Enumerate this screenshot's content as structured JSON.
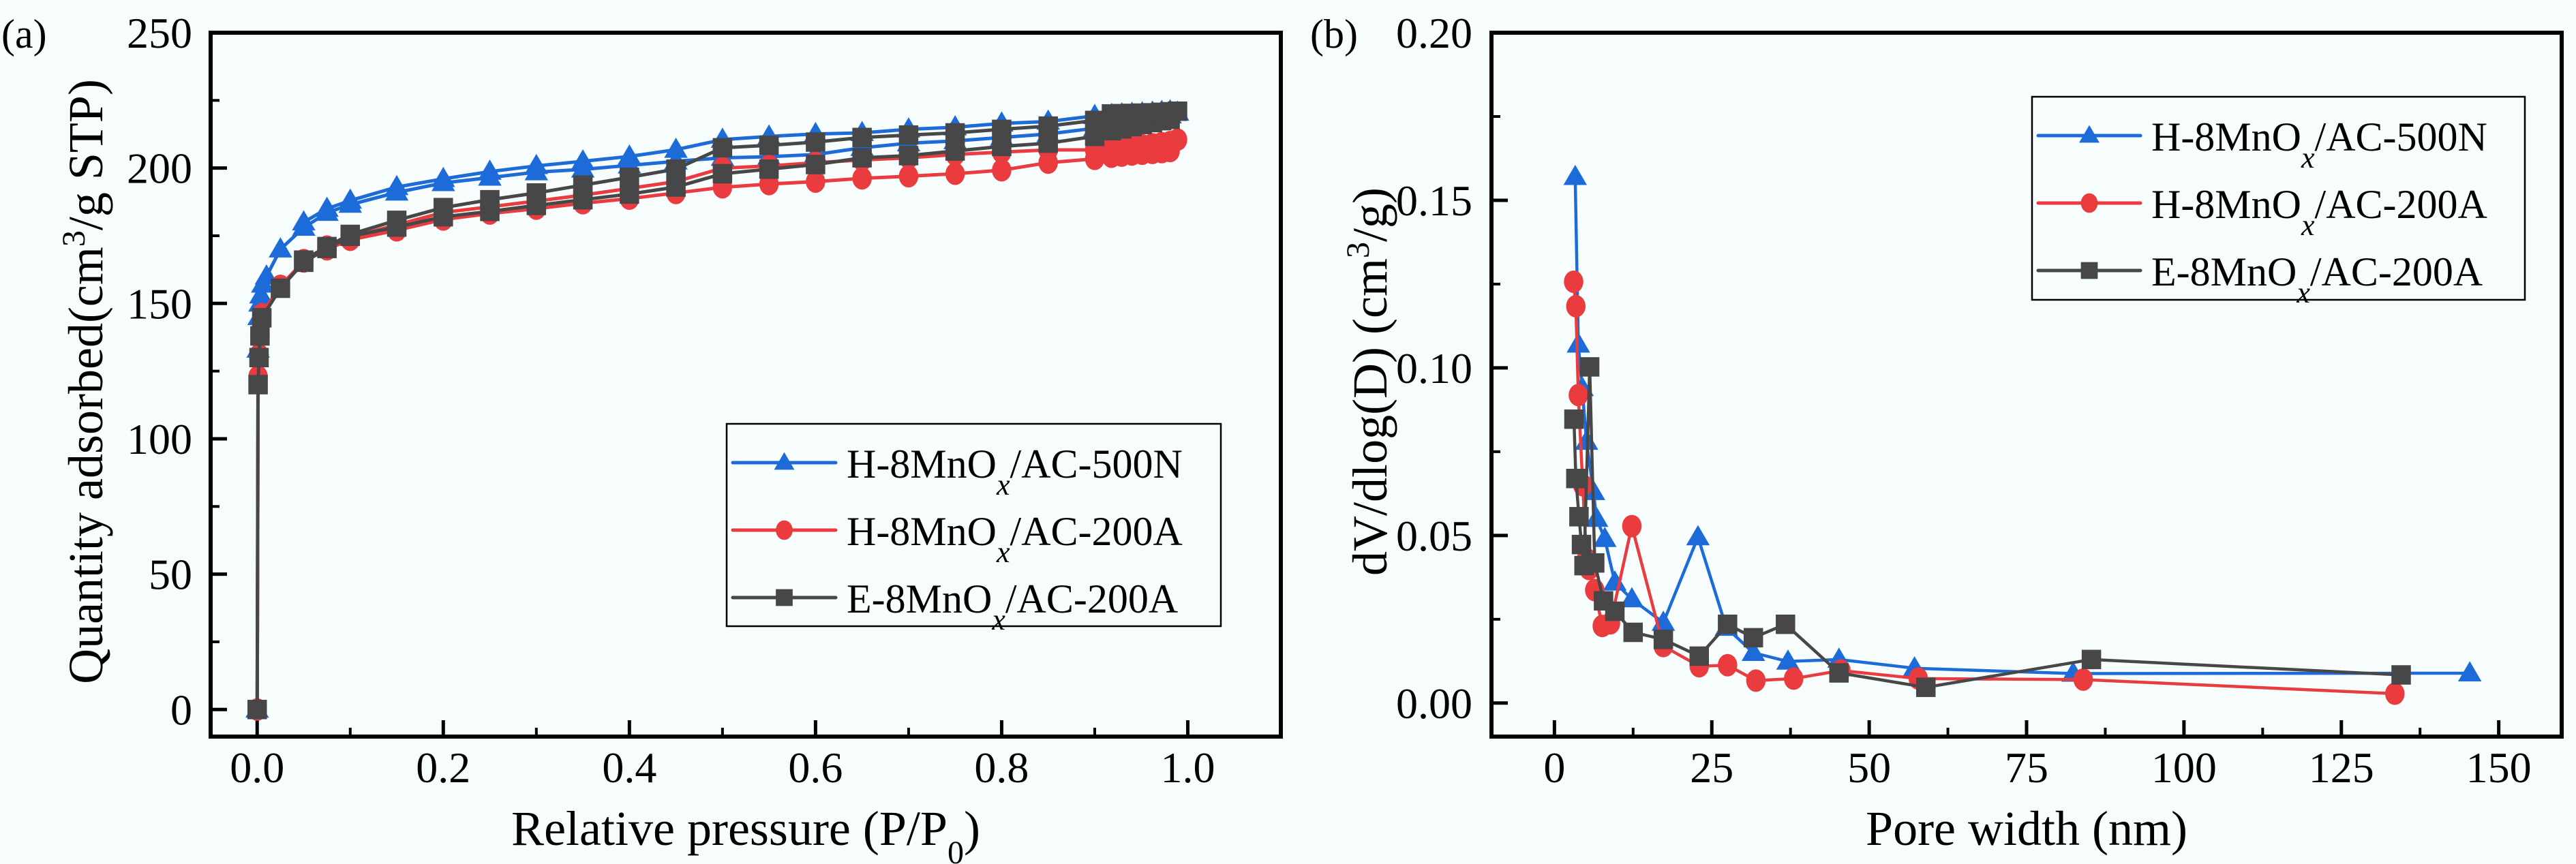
{
  "figure": {
    "background": "#f7fcfd",
    "colors": {
      "H-8MnOx/AC-500N": "#1c6bd8",
      "H-8MnOx/AC-200A": "#ea3b3e",
      "E-8MnOx/AC-200A": "#474747"
    }
  },
  "chart_data": [
    {
      "panel_label": "(a)",
      "type": "line",
      "title": "",
      "xlabel": "Relative pressure (P/P",
      "xlabel_sub": "0",
      "xlabel_end": ")",
      "ylabel": "Quantity adsorbed(cm",
      "ylabel_sup": "3",
      "ylabel_end": "/g STP)",
      "xlim": [
        -0.05,
        1.1
      ],
      "ylim": [
        -10,
        250
      ],
      "xticks": [
        0.0,
        0.2,
        0.4,
        0.6,
        0.8,
        1.0
      ],
      "xtick_labels": [
        "0.0",
        "0.2",
        "0.4",
        "0.6",
        "0.8",
        "1.0"
      ],
      "yticks": [
        0,
        50,
        100,
        150,
        200,
        250
      ],
      "ytick_labels": [
        "0",
        "50",
        "100",
        "150",
        "200",
        "250"
      ],
      "grid": false,
      "legend_position": "center-right",
      "series": [
        {
          "name": "H-8MnOx/AC-500N",
          "legend": {
            "pre": "H-8MnO",
            "sub": "x",
            "post": "/AC-500N"
          },
          "marker": "triangle",
          "color": "#1c6bd8",
          "x": [
            0.0,
            0.001,
            0.002,
            0.003,
            0.004,
            0.006,
            0.01,
            0.025,
            0.05,
            0.075,
            0.1,
            0.15,
            0.2,
            0.25,
            0.3,
            0.35,
            0.4,
            0.45,
            0.5,
            0.55,
            0.6,
            0.65,
            0.7,
            0.75,
            0.8,
            0.85,
            0.9,
            0.918,
            0.929,
            0.94,
            0.951,
            0.962,
            0.972,
            0.981,
            0.989,
            0.981,
            0.972,
            0.962,
            0.951,
            0.94,
            0.929,
            0.918,
            0.9,
            0.85,
            0.8,
            0.75,
            0.7,
            0.65,
            0.6,
            0.55,
            0.5,
            0.45,
            0.4,
            0.35,
            0.3,
            0.25,
            0.2,
            0.15,
            0.1,
            0.075,
            0.05
          ],
          "y": [
            0,
            133,
            145,
            150,
            153,
            157,
            160,
            170,
            178,
            183.5,
            186.5,
            191,
            194.5,
            196.5,
            198.5,
            199.5,
            201,
            202.5,
            203.8,
            204.2,
            205,
            207.5,
            209.2,
            210,
            211.3,
            212.6,
            214.7,
            215.1,
            215.8,
            216.5,
            217.2,
            218,
            218.8,
            219.5,
            220.5,
            221,
            220.8,
            220.5,
            220.3,
            220.1,
            219.9,
            219.7,
            219.3,
            217.2,
            216.5,
            215.1,
            214.3,
            213,
            212.6,
            211.7,
            210.5,
            206.8,
            204.3,
            202.5,
            200.8,
            198.7,
            196,
            193,
            188,
            185,
            180
          ]
        },
        {
          "name": "H-8MnOx/AC-200A",
          "legend": {
            "pre": "H-8MnO",
            "sub": "x",
            "post": "/AC-200A"
          },
          "marker": "circle",
          "color": "#ea3b3e",
          "x": [
            0.0,
            0.001,
            0.002,
            0.003,
            0.005,
            0.025,
            0.05,
            0.075,
            0.1,
            0.15,
            0.2,
            0.25,
            0.3,
            0.35,
            0.4,
            0.45,
            0.5,
            0.55,
            0.6,
            0.65,
            0.7,
            0.75,
            0.8,
            0.85,
            0.9,
            0.918,
            0.929,
            0.94,
            0.951,
            0.962,
            0.972,
            0.981,
            0.989,
            0.981,
            0.972,
            0.962,
            0.951,
            0.94,
            0.929,
            0.918,
            0.9,
            0.85,
            0.8,
            0.75,
            0.7,
            0.65,
            0.6,
            0.55,
            0.5,
            0.45,
            0.4,
            0.35,
            0.3,
            0.25,
            0.2,
            0.15,
            0.1,
            0.075,
            0.05
          ],
          "y": [
            0,
            123,
            131,
            138,
            146,
            156.5,
            165.5,
            170,
            173.5,
            177,
            181,
            183.2,
            185,
            187,
            188.7,
            190.8,
            192.9,
            194.1,
            195,
            196.2,
            197,
            197.9,
            199.2,
            202,
            203.4,
            204.2,
            204.6,
            205,
            205.3,
            205.6,
            205.9,
            206.3,
            210.5,
            209.6,
            209.2,
            208.8,
            208.4,
            208,
            207.8,
            207.5,
            206.7,
            206.7,
            205.9,
            205,
            203.8,
            203,
            202,
            200.8,
            200,
            195,
            192.5,
            190,
            187.8,
            185.7,
            183.6,
            179,
            174.5,
            171,
            166
          ]
        },
        {
          "name": "E-8MnOx/AC-200A",
          "legend": {
            "pre": "E-8MnO",
            "sub": "x",
            "post": "/AC-200A"
          },
          "marker": "square",
          "color": "#474747",
          "x": [
            0.0,
            0.001,
            0.002,
            0.003,
            0.005,
            0.025,
            0.05,
            0.075,
            0.1,
            0.15,
            0.2,
            0.25,
            0.3,
            0.35,
            0.4,
            0.45,
            0.5,
            0.55,
            0.6,
            0.65,
            0.7,
            0.75,
            0.8,
            0.85,
            0.9,
            0.918,
            0.929,
            0.94,
            0.951,
            0.962,
            0.972,
            0.981,
            0.989,
            0.981,
            0.972,
            0.962,
            0.951,
            0.94,
            0.929,
            0.918,
            0.9,
            0.85,
            0.8,
            0.75,
            0.7,
            0.65,
            0.6,
            0.55,
            0.5,
            0.45,
            0.4,
            0.35,
            0.3,
            0.25,
            0.2,
            0.15,
            0.1,
            0.075,
            0.05
          ],
          "y": [
            0,
            120,
            130,
            138,
            144.7,
            155.6,
            165.2,
            170.3,
            174.8,
            178.2,
            182,
            184,
            186.2,
            188.3,
            190.4,
            193,
            197.9,
            199.6,
            201.3,
            203.8,
            204.6,
            206.3,
            208,
            209.2,
            211.7,
            213.8,
            214.5,
            215.3,
            216.1,
            216.8,
            217.5,
            218,
            221,
            220.8,
            220.6,
            220.4,
            220.3,
            220.2,
            220.1,
            220,
            217.6,
            215.5,
            214.3,
            213,
            212.2,
            211.3,
            209.6,
            208.4,
            207.5,
            199.6,
            196.6,
            193.7,
            190.8,
            188.3,
            185.4,
            180.7,
            175.5,
            171,
            166
          ]
        }
      ]
    },
    {
      "panel_label": "(b)",
      "type": "line",
      "title": "",
      "xlabel": "Pore width (nm)",
      "ylabel": "dV/dlog(D)  (cm",
      "ylabel_sup": "3",
      "ylabel_end": "/g)",
      "xlim": [
        -10,
        160
      ],
      "ylim": [
        -0.01,
        0.2
      ],
      "xticks": [
        0,
        25,
        50,
        75,
        100,
        125,
        150
      ],
      "xtick_labels": [
        "0",
        "25",
        "50",
        "75",
        "100",
        "125",
        "150"
      ],
      "yticks": [
        0.0,
        0.05,
        0.1,
        0.15,
        0.2
      ],
      "ytick_labels": [
        "0.00",
        "0.05",
        "0.10",
        "0.15",
        "0.20"
      ],
      "grid": false,
      "legend_position": "top-right",
      "series": [
        {
          "name": "H-8MnOx/AC-500N",
          "legend": {
            "pre": "H-8MnO",
            "sub": "x",
            "post": "/AC-500N"
          },
          "marker": "triangle",
          "color": "#1c6bd8",
          "x": [
            3.3,
            3.8,
            4.4,
            5.1,
            6.2,
            6.7,
            8.0,
            9.6,
            12.3,
            17.3,
            22.8,
            27.3,
            31.6,
            37.1,
            45.2,
            57.2,
            82.4,
            145.4
          ],
          "y": [
            0.157,
            0.107,
            0.094,
            0.078,
            0.063,
            0.055,
            0.049,
            0.036,
            0.031,
            0.024,
            0.0495,
            0.0225,
            0.015,
            0.0124,
            0.013,
            0.0104,
            0.0088,
            0.0089
          ]
        },
        {
          "name": "H-8MnOx/AC-200A",
          "legend": {
            "pre": "H-8MnO",
            "sub": "x",
            "post": "/AC-200A"
          },
          "marker": "circle",
          "color": "#ea3b3e",
          "x": [
            3.05,
            3.4,
            3.8,
            4.5,
            5.1,
            5.5,
            6.4,
            7.6,
            8.9,
            12.3,
            17.3,
            23.0,
            27.5,
            32.0,
            38.0,
            45.5,
            57.8,
            84.0,
            133.5
          ],
          "y": [
            0.1257,
            0.1184,
            0.0919,
            0.065,
            0.043,
            0.04,
            0.0337,
            0.023,
            0.0238,
            0.0528,
            0.017,
            0.011,
            0.0113,
            0.0067,
            0.0073,
            0.0097,
            0.0073,
            0.007,
            0.0028
          ]
        },
        {
          "name": "E-8MnOx/AC-200A",
          "legend": {
            "pre": "E-8MnO",
            "sub": "x",
            "post": "/AC-200A"
          },
          "marker": "square",
          "color": "#474747",
          "x": [
            3.1,
            3.4,
            3.9,
            4.3,
            4.7,
            5.6,
            6.4,
            7.8,
            9.6,
            12.5,
            17.3,
            23.0,
            27.5,
            31.6,
            36.7,
            45.2,
            59.0,
            85.3,
            134.5
          ],
          "y": [
            0.0847,
            0.067,
            0.0556,
            0.0473,
            0.041,
            0.1003,
            0.0418,
            0.0305,
            0.0274,
            0.0211,
            0.019,
            0.014,
            0.0235,
            0.0195,
            0.0235,
            0.009,
            0.0047,
            0.013,
            0.0084
          ]
        }
      ]
    }
  ]
}
